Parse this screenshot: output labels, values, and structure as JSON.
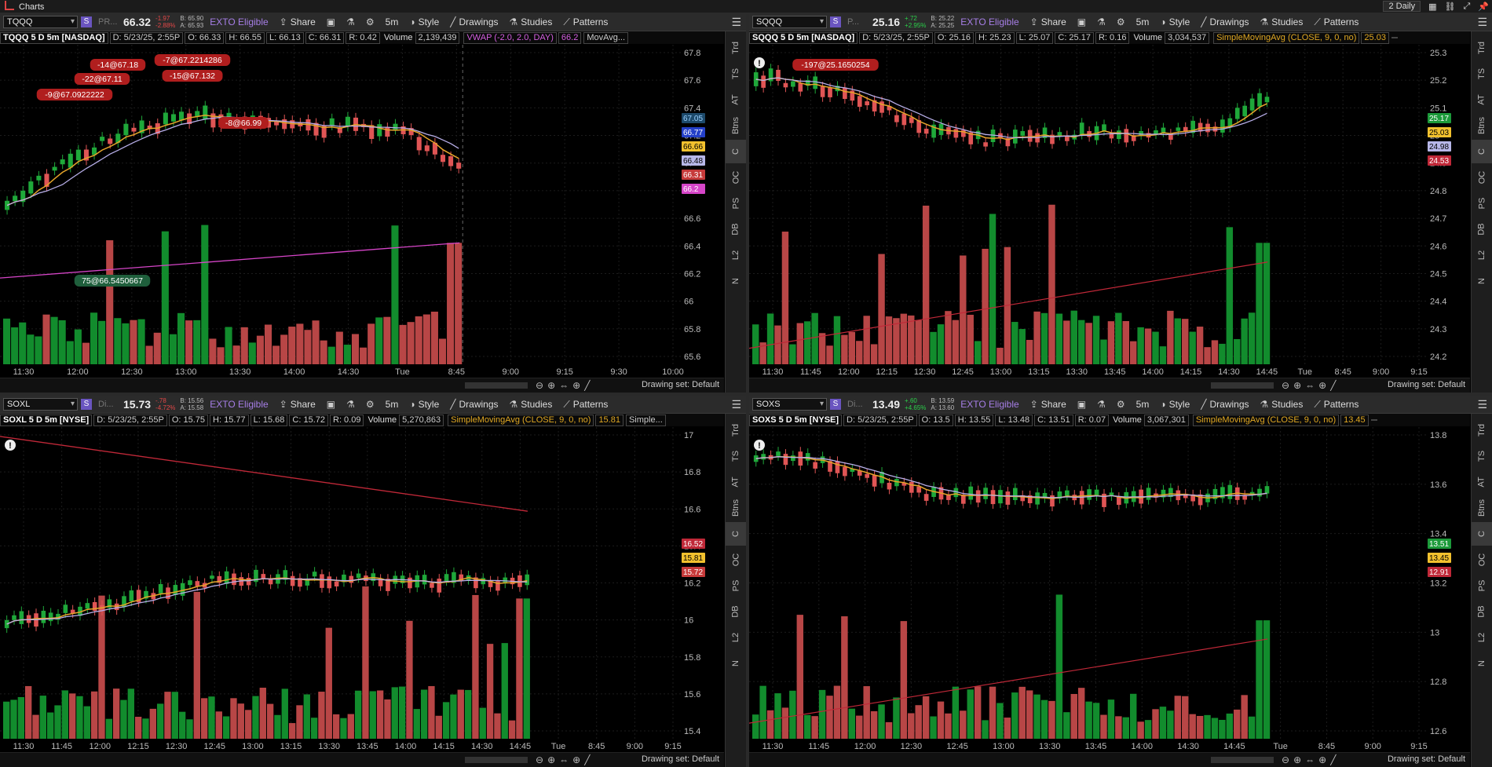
{
  "app": {
    "title": "Charts",
    "layout_label": "2 Daily"
  },
  "colors": {
    "up": "#1fa83a",
    "down": "#e05555",
    "vol_up": "#13932f",
    "vol_down": "#c24a4a",
    "exto": "#a67ee6",
    "sma_fast": "#e6a52a",
    "sma_slow": "#b7aee8"
  },
  "common": {
    "share": "Share",
    "style": "Style",
    "drawings": "Drawings",
    "studies": "Studies",
    "patterns": "Patterns",
    "timeframe": "5m",
    "exto": "EXTO Eligible",
    "drawing_set": "Drawing set: Default",
    "side_tabs": [
      "Trd",
      "TS",
      "AT",
      "Btns",
      "C",
      "OC",
      "PS",
      "DB",
      "L2",
      "N"
    ]
  },
  "panels": [
    {
      "id": "tqqq",
      "symbol": "TQQQ",
      "exch": "PR...",
      "last": "66.32",
      "chg1": "-1.97",
      "chg2": "-2.88%",
      "chg_dir": "neg",
      "bid": "B: 65.90",
      "ask": "A: 65.93",
      "desc": "TQQQ 5 D 5m [NASDAQ]",
      "date": "D: 5/23/25, 2:55P",
      "open": "O: 66.33",
      "high": "H: 66.55",
      "low": "L: 66.13",
      "close": "C: 66.31",
      "range": "R: 0.42",
      "volume_label": "Volume",
      "volume": "2,139,439",
      "study": "VWAP (-2.0, 2.0, DAY)",
      "study_val": "66.2",
      "study2": "MovAvg...",
      "study_class": "vw",
      "xlabels": [
        "11:30",
        "12:00",
        "12:30",
        "13:00",
        "13:30",
        "14:00",
        "14:30",
        "Tue",
        "8:45",
        "9:00",
        "9:15",
        "9:30",
        "10:00"
      ],
      "ylabels": [
        "67.8",
        "67.6",
        "67.4",
        "67.2",
        "67",
        "66.8",
        "66.6",
        "66.4",
        "66.2",
        "66",
        "65.8",
        "65.6"
      ],
      "badges": [
        {
          "text": "67.05",
          "color": "#9ad0ff",
          "bg": "#1d4a6b"
        },
        {
          "text": "66.77",
          "color": "#ffffff",
          "bg": "#2440c8"
        },
        {
          "text": "66.66",
          "color": "#000000",
          "bg": "#f2c12e"
        },
        {
          "text": "66.48",
          "color": "#000000",
          "bg": "#b7b7e8"
        },
        {
          "text": "66.31",
          "color": "#ffffff",
          "bg": "#c63a3a"
        },
        {
          "text": "66.2",
          "color": "#ffffff",
          "bg": "#d645c8"
        }
      ],
      "orders": [
        "-14@67.18",
        "-7@67.2214286",
        "-22@67.11",
        "-15@67.132",
        "-9@67.0922222",
        "-8@66.99",
        "75@66.5450667"
      ]
    },
    {
      "id": "sqqq",
      "symbol": "SQQQ",
      "exch": "P...",
      "last": "25.16",
      "chg1": "+.72",
      "chg2": "+2.95%",
      "chg_dir": "pos",
      "bid": "B: 25.22",
      "ask": "A: 25.25",
      "desc": "SQQQ 5 D 5m [NASDAQ]",
      "date": "D: 5/23/25, 2:55P",
      "open": "O: 25.16",
      "high": "H: 25.23",
      "low": "L: 25.07",
      "close": "C: 25.17",
      "range": "R: 0.16",
      "volume_label": "Volume",
      "volume": "3,034,537",
      "study": "SimpleMovingAvg (CLOSE, 9, 0, no)",
      "study_val": "25.03",
      "study2": "",
      "study_class": "",
      "xlabels": [
        "11:30",
        "11:45",
        "12:00",
        "12:15",
        "12:30",
        "12:45",
        "13:00",
        "13:15",
        "13:30",
        "13:45",
        "14:00",
        "14:15",
        "14:30",
        "14:45",
        "Tue",
        "8:45",
        "9:00",
        "9:15"
      ],
      "ylabels": [
        "25.3",
        "25.2",
        "25.1",
        "25",
        "24.9",
        "24.8",
        "24.7",
        "24.6",
        "24.5",
        "24.4",
        "24.3",
        "24.2"
      ],
      "badges": [
        {
          "text": "25.17",
          "color": "#ffffff",
          "bg": "#1c9a3a"
        },
        {
          "text": "25.03",
          "color": "#000000",
          "bg": "#f2c12e"
        },
        {
          "text": "24.98",
          "color": "#000000",
          "bg": "#b7b7e8"
        },
        {
          "text": "24.53",
          "color": "#ffffff",
          "bg": "#c02838"
        }
      ],
      "orders": [
        "-197@25.1650254"
      ]
    },
    {
      "id": "soxl",
      "symbol": "SOXL",
      "exch": "Di...",
      "last": "15.73",
      "chg1": "-.78",
      "chg2": "-4.72%",
      "chg_dir": "neg",
      "bid": "B: 15.56",
      "ask": "A: 15.58",
      "desc": "SOXL 5 D 5m [NYSE]",
      "date": "D: 5/23/25, 2:55P",
      "open": "O: 15.75",
      "high": "H: 15.77",
      "low": "L: 15.68",
      "close": "C: 15.72",
      "range": "R: 0.09",
      "volume_label": "Volume",
      "volume": "5,270,863",
      "study": "SimpleMovingAvg (CLOSE, 9, 0, no)",
      "study_val": "15.81",
      "study2": "Simple...",
      "study_class": "",
      "xlabels": [
        "11:30",
        "11:45",
        "12:00",
        "12:15",
        "12:30",
        "12:45",
        "13:00",
        "13:15",
        "13:30",
        "13:45",
        "14:00",
        "14:15",
        "14:30",
        "14:45",
        "Tue",
        "8:45",
        "9:00",
        "9:15"
      ],
      "ylabels": [
        "17",
        "16.8",
        "16.6",
        "16.4",
        "16.2",
        "16",
        "15.8",
        "15.6",
        "15.4"
      ],
      "badges": [
        {
          "text": "16.52",
          "color": "#ffffff",
          "bg": "#c02838"
        },
        {
          "text": "15.81",
          "color": "#000000",
          "bg": "#f2c12e"
        },
        {
          "text": "15.72",
          "color": "#ffffff",
          "bg": "#c63a3a"
        }
      ],
      "orders": []
    },
    {
      "id": "soxs",
      "symbol": "SOXS",
      "exch": "Di...",
      "last": "13.49",
      "chg1": "+.60",
      "chg2": "+4.65%",
      "chg_dir": "pos",
      "bid": "B: 13.59",
      "ask": "A: 13.60",
      "desc": "SOXS 5 D 5m [NYSE]",
      "date": "D: 5/23/25, 2:55P",
      "open": "O: 13.5",
      "high": "H: 13.55",
      "low": "L: 13.48",
      "close": "C: 13.51",
      "range": "R: 0.07",
      "volume_label": "Volume",
      "volume": "3,067,301",
      "study": "SimpleMovingAvg (CLOSE, 9, 0, no)",
      "study_val": "13.45",
      "study2": "",
      "study_class": "",
      "xlabels": [
        "11:30",
        "11:45",
        "12:00",
        "12:30",
        "12:45",
        "13:00",
        "13:30",
        "13:45",
        "14:00",
        "14:30",
        "14:45",
        "Tue",
        "8:45",
        "9:00",
        "9:15"
      ],
      "ylabels": [
        "13.8",
        "13.6",
        "13.4",
        "13.2",
        "13",
        "12.8",
        "12.6"
      ],
      "badges": [
        {
          "text": "13.51",
          "color": "#ffffff",
          "bg": "#1c9a3a"
        },
        {
          "text": "13.45",
          "color": "#000000",
          "bg": "#f2c12e"
        },
        {
          "text": "12.91",
          "color": "#ffffff",
          "bg": "#c02838"
        }
      ],
      "orders": []
    }
  ]
}
